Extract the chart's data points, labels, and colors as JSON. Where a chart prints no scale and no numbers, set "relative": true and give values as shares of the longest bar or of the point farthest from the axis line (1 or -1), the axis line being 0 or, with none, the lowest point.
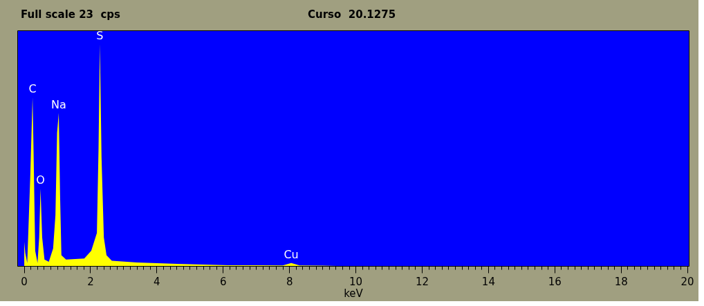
{
  "chart_data": {
    "type": "area",
    "title": "Full scale 23  cps",
    "subtitle": "Curso  20.1275",
    "xlabel": "keV",
    "relative": true,
    "x": [
      0.0,
      0.03,
      0.09,
      0.18,
      0.25,
      0.28,
      0.33,
      0.4,
      0.45,
      0.49,
      0.54,
      0.61,
      0.74,
      0.87,
      0.94,
      0.99,
      1.04,
      1.08,
      1.12,
      1.26,
      1.81,
      2.02,
      2.19,
      2.24,
      2.28,
      2.33,
      2.4,
      2.48,
      2.64,
      3.4,
      4.78,
      6.16,
      7.0,
      7.8,
      8.05,
      8.3,
      9.0,
      10.0,
      20.0
    ],
    "series": [
      {
        "color": "#ffff00",
        "values": [
          0.11,
          0.06,
          0.015,
          0.4,
          0.76,
          0.52,
          0.07,
          0.015,
          0.13,
          0.35,
          0.13,
          0.03,
          0.02,
          0.08,
          0.23,
          0.6,
          0.69,
          0.32,
          0.05,
          0.03,
          0.035,
          0.07,
          0.15,
          0.53,
          1.0,
          0.49,
          0.13,
          0.05,
          0.025,
          0.017,
          0.01,
          0.005,
          0.005,
          0.004,
          0.015,
          0.004,
          0.003,
          0.0,
          0.0
        ]
      }
    ],
    "xlim": [
      -0.2,
      20.05
    ],
    "xticks": [
      0,
      2,
      4,
      6,
      8,
      10,
      12,
      14,
      16,
      18,
      20
    ],
    "annotations": [
      {
        "text": "C",
        "x": 0.25,
        "y": 0.76
      },
      {
        "text": "O",
        "x": 0.49,
        "y": 0.35
      },
      {
        "text": "Na",
        "x": 1.04,
        "y": 0.69
      },
      {
        "text": "S",
        "x": 2.28,
        "y": 1.0
      },
      {
        "text": "Cu",
        "x": 8.05,
        "y": 0.015
      }
    ],
    "grid": false
  }
}
